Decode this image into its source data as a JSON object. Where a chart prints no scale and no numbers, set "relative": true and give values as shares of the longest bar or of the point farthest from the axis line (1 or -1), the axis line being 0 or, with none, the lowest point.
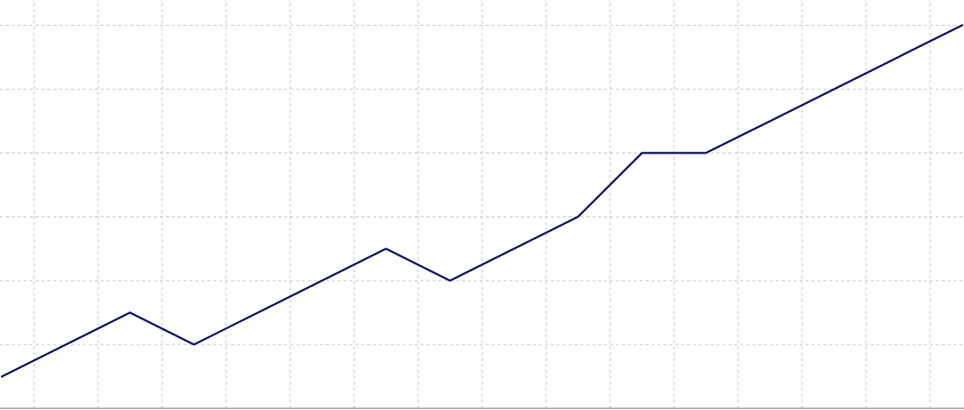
{
  "chart_data": {
    "type": "line",
    "relative": true,
    "categories": [
      null,
      null,
      null,
      null,
      null,
      null,
      null,
      null,
      null,
      null,
      null,
      null,
      null,
      null,
      null,
      null
    ],
    "series": [
      {
        "color": "#0b0b5e",
        "values": [
          0.0833,
          0.1667,
          0.25,
          0.1667,
          0.25,
          0.3333,
          0.4167,
          0.3333,
          0.4167,
          0.5,
          0.6667,
          0.6667,
          0.75,
          0.8333,
          0.9167,
          1
        ]
      }
    ],
    "grid": true,
    "marker": "none",
    "line_style": "solid"
  }
}
